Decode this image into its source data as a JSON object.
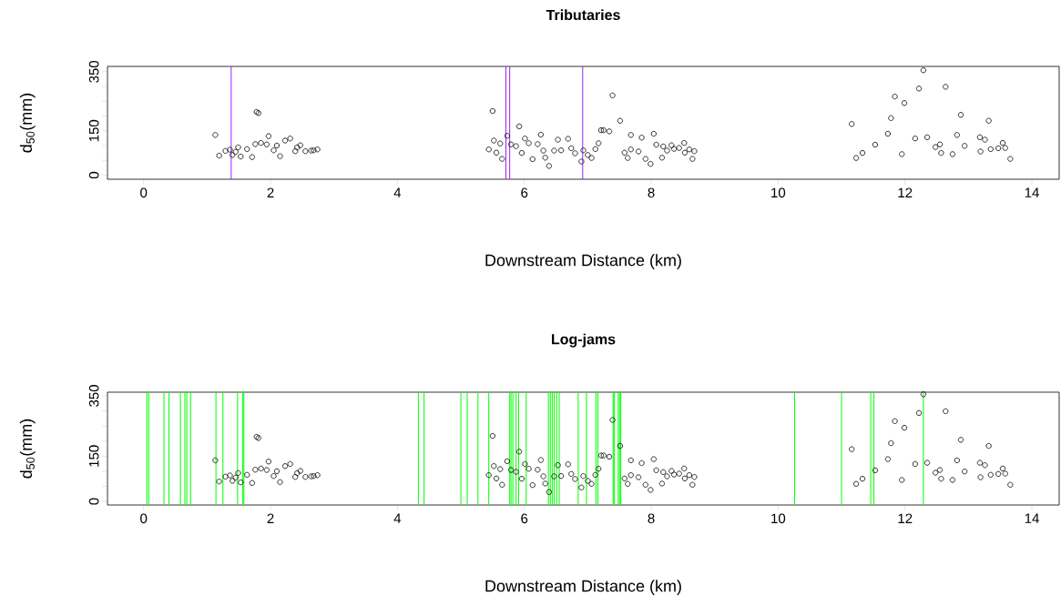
{
  "chart_data": [
    {
      "type": "scatter",
      "title": "Tributaries",
      "xlabel": "Downstream Distance (km)",
      "ylabel": "d$_{50}$(mm)",
      "xlim": [
        -0.57,
        14.43
      ],
      "ylim": [
        -14,
        368
      ],
      "xticks": [
        0,
        2,
        4,
        6,
        8,
        10,
        12,
        14
      ],
      "yticks": [
        0,
        {
          "value": 50,
          "label": null
        },
        {
          "value": 100,
          "label": null
        },
        150,
        {
          "value": 200,
          "label": null
        },
        {
          "value": 250,
          "label": null
        },
        {
          "value": 300,
          "label": null
        },
        350
      ],
      "marker": "circle",
      "series": [
        {
          "color": "#000000",
          "x": [
            1.13,
            1.19,
            1.29,
            1.36,
            1.4,
            1.45,
            1.49,
            1.53,
            1.63,
            1.71,
            1.76,
            1.78,
            1.81,
            1.85,
            1.94,
            1.97,
            2.05,
            2.1,
            2.15,
            2.23,
            2.31,
            2.39,
            2.42,
            2.47,
            2.55,
            2.64,
            2.68,
            2.74,
            5.5,
            5.44,
            5.52,
            5.56,
            5.62,
            5.65,
            5.73,
            5.79,
            5.87,
            5.92,
            5.96,
            6.01,
            6.07,
            6.13,
            6.21,
            6.26,
            6.3,
            6.33,
            6.39,
            6.47,
            6.53,
            6.58,
            6.69,
            6.74,
            6.8,
            6.9,
            6.93,
            7.0,
            7.06,
            7.12,
            7.17,
            7.21,
            7.25,
            7.34,
            7.39,
            7.51,
            7.58,
            7.63,
            7.68,
            7.68,
            7.8,
            7.85,
            7.91,
            7.99,
            8.04,
            8.08,
            8.17,
            8.19,
            8.25,
            8.32,
            8.36,
            8.44,
            8.52,
            8.53,
            8.6,
            8.65,
            8.68,
            11.16,
            11.23,
            11.33,
            11.53,
            11.73,
            11.78,
            11.84,
            11.95,
            11.99,
            12.16,
            12.22,
            12.29,
            12.35,
            12.48,
            12.55,
            12.57,
            12.64,
            12.75,
            12.82,
            12.88,
            12.94,
            13.18,
            13.19,
            13.26,
            13.32,
            13.35,
            13.47,
            13.54,
            13.58,
            13.66
          ],
          "values": [
            136,
            66,
            82,
            86,
            68,
            79,
            94,
            63,
            88,
            61,
            105,
            214,
            210,
            109,
            104,
            132,
            84,
            100,
            64,
            117,
            124,
            81,
            94,
            101,
            81,
            83,
            84,
            87,
            217,
            87,
            117,
            76,
            107,
            55,
            133,
            104,
            98,
            165,
            75,
            124,
            108,
            54,
            105,
            137,
            83,
            59,
            31,
            83,
            120,
            84,
            123,
            91,
            74,
            46,
            84,
            68,
            58,
            88,
            108,
            152,
            152,
            148,
            270,
            184,
            76,
            58,
            136,
            87,
            80,
            127,
            55,
            38,
            140,
            103,
            59,
            97,
            83,
            101,
            89,
            92,
            109,
            76,
            87,
            55,
            81,
            173,
            58,
            75,
            103,
            140,
            193,
            266,
            71,
            244,
            124,
            293,
            355,
            128,
            95,
            104,
            75,
            299,
            71,
            136,
            204,
            99,
            128,
            80,
            120,
            184,
            88,
            91,
            109,
            92,
            55
          ]
        }
      ],
      "ref_lines": [
        {
          "axis": "x",
          "value": 1.38,
          "color": "#a020f0"
        },
        {
          "axis": "x",
          "value": 5.71,
          "color": "#a020f0"
        },
        {
          "axis": "x",
          "value": 5.77,
          "color": "#a020f0"
        },
        {
          "axis": "x",
          "value": 6.92,
          "color": "#a020f0"
        }
      ]
    },
    {
      "type": "scatter",
      "title": "Log-jams",
      "xlabel": "Downstream Distance (km)",
      "ylabel": "d$_{50}$(mm)",
      "xlim": [
        -0.57,
        14.43
      ],
      "ylim": [
        -12,
        362
      ],
      "xticks": [
        0,
        2,
        4,
        6,
        8,
        10,
        12,
        14
      ],
      "yticks": [
        0,
        {
          "value": 50,
          "label": null
        },
        {
          "value": 100,
          "label": null
        },
        150,
        {
          "value": 200,
          "label": null
        },
        {
          "value": 250,
          "label": null
        },
        {
          "value": 300,
          "label": null
        },
        350
      ],
      "marker": "circle",
      "series": [
        {
          "color": "#000000",
          "x": [
            1.13,
            1.19,
            1.29,
            1.36,
            1.4,
            1.45,
            1.49,
            1.53,
            1.63,
            1.71,
            1.76,
            1.78,
            1.81,
            1.85,
            1.94,
            1.97,
            2.05,
            2.1,
            2.15,
            2.23,
            2.31,
            2.39,
            2.42,
            2.47,
            2.55,
            2.64,
            2.68,
            2.74,
            5.5,
            5.44,
            5.52,
            5.56,
            5.62,
            5.65,
            5.73,
            5.79,
            5.87,
            5.92,
            5.96,
            6.01,
            6.07,
            6.13,
            6.21,
            6.26,
            6.3,
            6.33,
            6.39,
            6.47,
            6.53,
            6.58,
            6.69,
            6.74,
            6.8,
            6.9,
            6.93,
            7.0,
            7.06,
            7.12,
            7.17,
            7.21,
            7.25,
            7.34,
            7.39,
            7.51,
            7.58,
            7.63,
            7.68,
            7.68,
            7.8,
            7.85,
            7.91,
            7.99,
            8.04,
            8.08,
            8.17,
            8.19,
            8.25,
            8.32,
            8.36,
            8.44,
            8.52,
            8.53,
            8.6,
            8.65,
            8.68,
            11.16,
            11.23,
            11.33,
            11.53,
            11.73,
            11.78,
            11.84,
            11.95,
            11.99,
            12.16,
            12.22,
            12.29,
            12.35,
            12.48,
            12.55,
            12.57,
            12.64,
            12.75,
            12.82,
            12.88,
            12.94,
            13.18,
            13.19,
            13.26,
            13.32,
            13.35,
            13.47,
            13.54,
            13.58,
            13.66
          ],
          "values": [
            136,
            66,
            82,
            86,
            68,
            79,
            94,
            63,
            88,
            61,
            105,
            214,
            210,
            109,
            104,
            132,
            84,
            100,
            64,
            117,
            124,
            81,
            94,
            101,
            81,
            83,
            84,
            87,
            217,
            87,
            117,
            76,
            107,
            55,
            133,
            104,
            98,
            165,
            75,
            124,
            108,
            54,
            105,
            137,
            83,
            59,
            31,
            83,
            120,
            84,
            123,
            91,
            74,
            46,
            84,
            68,
            58,
            88,
            108,
            152,
            152,
            148,
            270,
            184,
            76,
            58,
            136,
            87,
            80,
            127,
            55,
            38,
            140,
            103,
            59,
            97,
            83,
            101,
            89,
            92,
            109,
            76,
            87,
            55,
            81,
            173,
            58,
            75,
            103,
            140,
            193,
            266,
            71,
            244,
            124,
            293,
            355,
            128,
            95,
            104,
            75,
            299,
            71,
            136,
            204,
            99,
            128,
            80,
            120,
            184,
            88,
            91,
            109,
            92,
            55
          ]
        }
      ],
      "ref_lines": [
        {
          "axis": "x",
          "value": 0.05,
          "color": "#00ff00"
        },
        {
          "axis": "x",
          "value": 0.08,
          "color": "#00ff00"
        },
        {
          "axis": "x",
          "value": 0.32,
          "color": "#00ff00"
        },
        {
          "axis": "x",
          "value": 0.4,
          "color": "#00ff00"
        },
        {
          "axis": "x",
          "value": 0.58,
          "color": "#00ff00"
        },
        {
          "axis": "x",
          "value": 0.65,
          "color": "#00ff00"
        },
        {
          "axis": "x",
          "value": 0.68,
          "color": "#00ff00"
        },
        {
          "axis": "x",
          "value": 0.74,
          "color": "#00ff00"
        },
        {
          "axis": "x",
          "value": 1.14,
          "color": "#00ff00"
        },
        {
          "axis": "x",
          "value": 1.25,
          "color": "#00ff00"
        },
        {
          "axis": "x",
          "value": 1.48,
          "color": "#00ff00"
        },
        {
          "axis": "x",
          "value": 1.56,
          "color": "#00ff00"
        },
        {
          "axis": "x",
          "value": 1.58,
          "color": "#00ff00"
        },
        {
          "axis": "x",
          "value": 4.33,
          "color": "#00ff00"
        },
        {
          "axis": "x",
          "value": 4.42,
          "color": "#00ff00"
        },
        {
          "axis": "x",
          "value": 5.0,
          "color": "#00ff00"
        },
        {
          "axis": "x",
          "value": 5.1,
          "color": "#00ff00"
        },
        {
          "axis": "x",
          "value": 5.27,
          "color": "#00ff00"
        },
        {
          "axis": "x",
          "value": 5.44,
          "color": "#00ff00"
        },
        {
          "axis": "x",
          "value": 5.77,
          "color": "#00ff00"
        },
        {
          "axis": "x",
          "value": 5.79,
          "color": "#00ff00"
        },
        {
          "axis": "x",
          "value": 5.82,
          "color": "#00ff00"
        },
        {
          "axis": "x",
          "value": 5.87,
          "color": "#00ff00"
        },
        {
          "axis": "x",
          "value": 5.91,
          "color": "#00ff00"
        },
        {
          "axis": "x",
          "value": 6.03,
          "color": "#00ff00"
        },
        {
          "axis": "x",
          "value": 6.38,
          "color": "#00ff00"
        },
        {
          "axis": "x",
          "value": 6.41,
          "color": "#00ff00"
        },
        {
          "axis": "x",
          "value": 6.44,
          "color": "#00ff00"
        },
        {
          "axis": "x",
          "value": 6.47,
          "color": "#00ff00"
        },
        {
          "axis": "x",
          "value": 6.51,
          "color": "#00ff00"
        },
        {
          "axis": "x",
          "value": 6.55,
          "color": "#00ff00"
        },
        {
          "axis": "x",
          "value": 6.85,
          "color": "#00ff00"
        },
        {
          "axis": "x",
          "value": 6.98,
          "color": "#00ff00"
        },
        {
          "axis": "x",
          "value": 7.13,
          "color": "#00ff00"
        },
        {
          "axis": "x",
          "value": 7.16,
          "color": "#00ff00"
        },
        {
          "axis": "x",
          "value": 7.4,
          "color": "#00ff00"
        },
        {
          "axis": "x",
          "value": 7.42,
          "color": "#00ff00"
        },
        {
          "axis": "x",
          "value": 7.48,
          "color": "#00ff00"
        },
        {
          "axis": "x",
          "value": 7.5,
          "color": "#00ff00"
        },
        {
          "axis": "x",
          "value": 7.52,
          "color": "#00ff00"
        },
        {
          "axis": "x",
          "value": 10.26,
          "color": "#00ff00"
        },
        {
          "axis": "x",
          "value": 11.0,
          "color": "#00ff00"
        },
        {
          "axis": "x",
          "value": 11.46,
          "color": "#00ff00"
        },
        {
          "axis": "x",
          "value": 11.51,
          "color": "#00ff00"
        },
        {
          "axis": "x",
          "value": 12.29,
          "color": "#00ff00"
        }
      ]
    }
  ]
}
